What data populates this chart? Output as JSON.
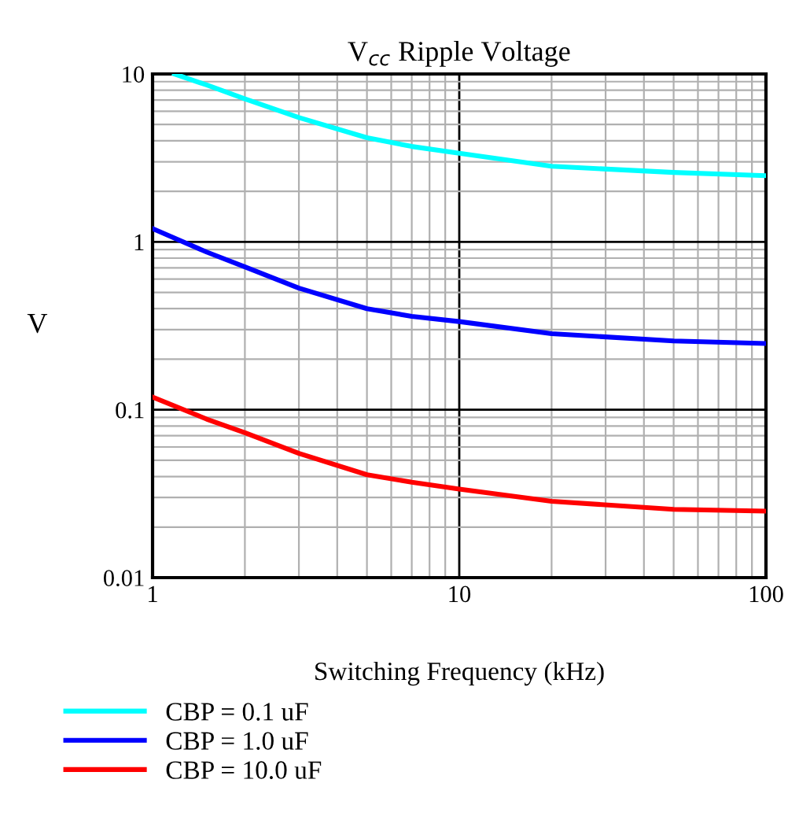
{
  "chart_data": {
    "type": "line",
    "title": "V$_{cc}$ Ripple Voltage",
    "xlabel": "Switching Frequency (kHz)",
    "ylabel": "V",
    "log": "xy",
    "xlim": [
      1,
      100
    ],
    "ylim": [
      0.01,
      10
    ],
    "xticks": [
      1,
      10,
      100
    ],
    "yticks": [
      0.01,
      0.1,
      1,
      10
    ],
    "grid": true,
    "legend": "bottom",
    "marker": "none",
    "line_style": "solid",
    "series": [
      {
        "name": "CBP = 0.1 uF",
        "color": "#00ffff",
        "x": [
          1.18,
          1.5,
          2,
          3,
          5,
          7,
          10,
          20,
          50,
          100
        ],
        "values": [
          10,
          8.6,
          7.1,
          5.5,
          4.17,
          3.7,
          3.37,
          2.82,
          2.59,
          2.48
        ]
      },
      {
        "name": "CBP = 1.0 uF",
        "color": "#0000ff",
        "x": [
          1,
          1.5,
          2,
          3,
          5,
          7,
          10,
          20,
          50,
          100
        ],
        "values": [
          1.2,
          0.87,
          0.71,
          0.53,
          0.4,
          0.36,
          0.335,
          0.284,
          0.257,
          0.248
        ]
      },
      {
        "name": "CBP = 10.0 uF",
        "color": "#ff0000",
        "x": [
          1,
          1.5,
          2,
          3,
          5,
          7,
          10,
          20,
          50,
          100
        ],
        "values": [
          0.119,
          0.088,
          0.073,
          0.055,
          0.041,
          0.037,
          0.0337,
          0.0285,
          0.0255,
          0.0249
        ]
      }
    ]
  }
}
